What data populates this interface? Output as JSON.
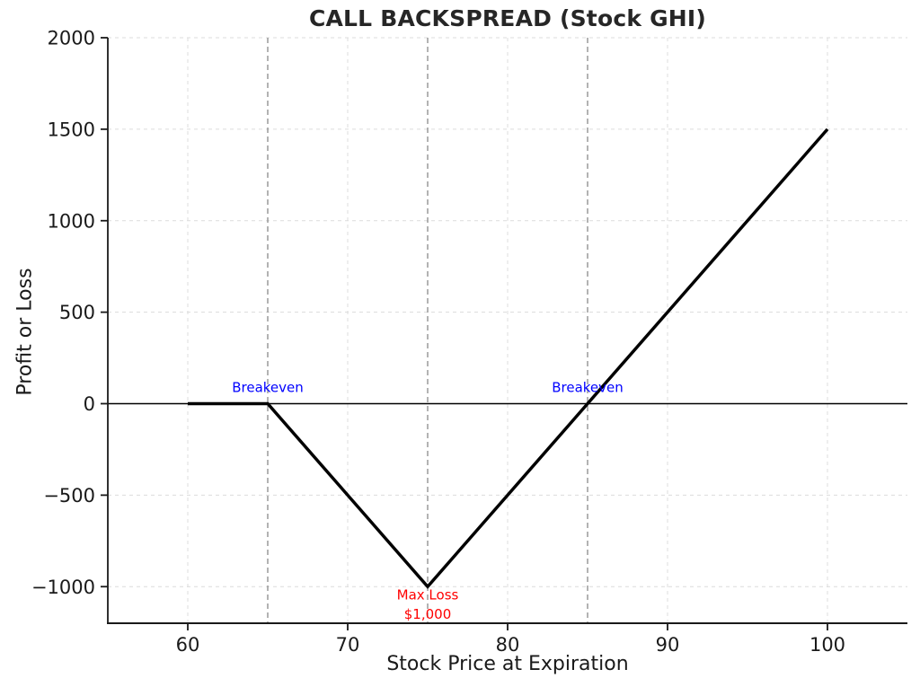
{
  "chart_data": {
    "type": "line",
    "title": "CALL BACKSPREAD (Stock GHI)",
    "xlabel": "Stock Price at Expiration",
    "ylabel": "Profit or Loss",
    "xlim": [
      55,
      105
    ],
    "ylim": [
      -1200,
      2000
    ],
    "xticks": [
      60,
      70,
      80,
      90,
      100
    ],
    "yticks": [
      -1000,
      -500,
      0,
      500,
      1000,
      1500,
      2000
    ],
    "grid": true,
    "grid_style": "dashed",
    "series": [
      {
        "name": "payoff",
        "color": "#000000",
        "width": 3.5,
        "points": [
          [
            60,
            0
          ],
          [
            65,
            0
          ],
          [
            75,
            -1000
          ],
          [
            100,
            1500
          ]
        ]
      }
    ],
    "hlines": [
      {
        "y": 0,
        "color": "#000000",
        "style": "solid",
        "width": 1.6
      }
    ],
    "vlines": [
      {
        "x": 65,
        "color": "#8a8a8a",
        "style": "dashed",
        "width": 1.3
      },
      {
        "x": 75,
        "color": "#8a8a8a",
        "style": "dashed",
        "width": 1.3
      },
      {
        "x": 85,
        "color": "#8a8a8a",
        "style": "dashed",
        "width": 1.3
      }
    ],
    "annotations": [
      {
        "name": "breakeven-lower",
        "text": "Breakeven",
        "x": 65,
        "y": 88,
        "color": "#0000ff"
      },
      {
        "name": "breakeven-upper",
        "text": "Breakeven",
        "x": 85,
        "y": 88,
        "color": "#0000ff"
      },
      {
        "name": "max-loss-line1",
        "text": "Max Loss",
        "x": 75,
        "y": -1045,
        "color": "#ff0000"
      },
      {
        "name": "max-loss-line2",
        "text": "$1,000",
        "x": 75,
        "y": -1150,
        "color": "#ff0000"
      }
    ],
    "colors": {
      "grid": "#dcdcdc",
      "spine": "#1a1a1a",
      "tick": "#1a1a1a"
    }
  }
}
